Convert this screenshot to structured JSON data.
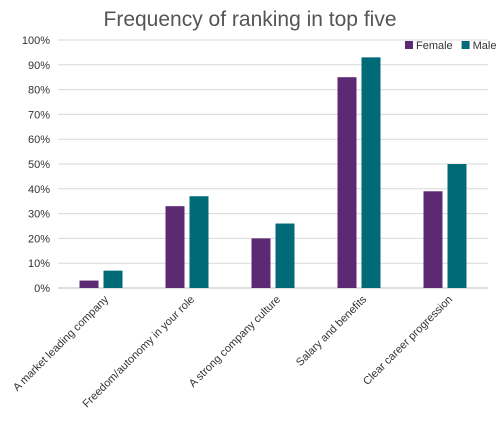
{
  "colors": {
    "female": "#5c2a73",
    "male": "#006b77",
    "background": "#ffffff"
  },
  "chart_data": {
    "type": "bar",
    "title": "Frequency of ranking in top five",
    "xlabel": "",
    "ylabel": "",
    "ylim": [
      0,
      100
    ],
    "y_ticks": [
      "0%",
      "10%",
      "20%",
      "30%",
      "40%",
      "50%",
      "60%",
      "70%",
      "80%",
      "90%",
      "100%"
    ],
    "y_tick_values": [
      0,
      10,
      20,
      30,
      40,
      50,
      60,
      70,
      80,
      90,
      100
    ],
    "grid": true,
    "legend": "top-right",
    "categories": [
      "A market leading company",
      "Freedom/autonomy in your role",
      "A strong company culture",
      "Salary and benefits",
      "Clear career progression"
    ],
    "series": [
      {
        "name": "Female",
        "color": "#5c2a73",
        "values": [
          3,
          33,
          20,
          85,
          39
        ]
      },
      {
        "name": "Male",
        "color": "#006b77",
        "values": [
          7,
          37,
          26,
          93,
          50
        ]
      }
    ]
  }
}
